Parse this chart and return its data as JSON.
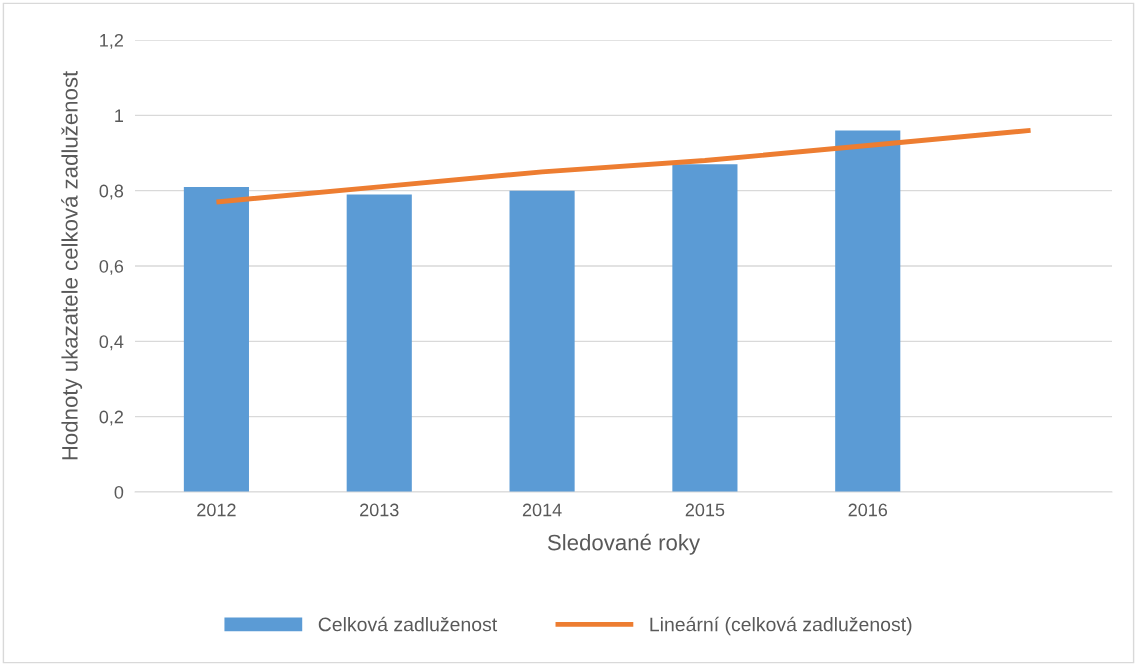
{
  "chart_data": {
    "type": "bar",
    "xlabel": "Sledované roky",
    "ylabel": "Hodnoty ukazatele celková zadluženost",
    "categories": [
      "2012",
      "2013",
      "2014",
      "2015",
      "2016",
      null
    ],
    "series": [
      {
        "name": "Celková zadluženost",
        "color": "#5b9bd5",
        "values": [
          0.81,
          0.79,
          0.8,
          0.87,
          0.96,
          null
        ]
      },
      {
        "name": "Lineární (celková zadluženost)",
        "type": "line",
        "color": "#ed7d31",
        "values": [
          0.77,
          0.81,
          0.85,
          0.88,
          0.92,
          0.96
        ]
      }
    ],
    "ylim": [
      0,
      1.2
    ],
    "yticks": [
      {
        "value": 0,
        "label": "0"
      },
      {
        "value": 0.2,
        "label": "0,2"
      },
      {
        "value": 0.4,
        "label": "0,4"
      },
      {
        "value": 0.6,
        "label": "0,6"
      },
      {
        "value": 0.8,
        "label": "0,8"
      },
      {
        "value": 1,
        "label": "1"
      },
      {
        "value": 1.2,
        "label": "1,2"
      }
    ],
    "grid": "y",
    "legend": "bottom"
  }
}
